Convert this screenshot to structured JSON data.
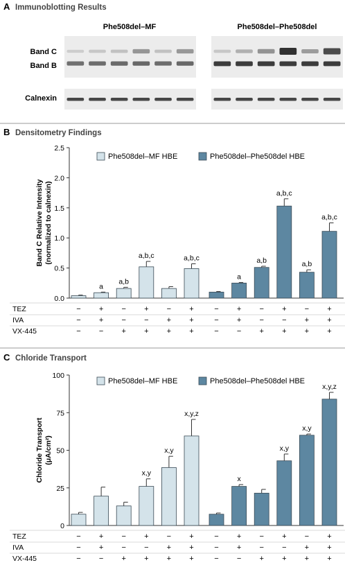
{
  "panels": {
    "A": {
      "letter": "A",
      "title": "Immunoblotting Results",
      "group_labels": [
        "Phe508del–MF",
        "Phe508del–Phe508del"
      ],
      "band_labels": [
        "Band C",
        "Band B",
        "Calnexin"
      ]
    },
    "B": {
      "letter": "B",
      "title": "Densitometry Findings"
    },
    "C": {
      "letter": "C",
      "title": "Chloride Transport"
    }
  },
  "treatment_table": {
    "rows": [
      {
        "label": "TEZ",
        "values": [
          "−",
          "+",
          "−",
          "+",
          "−",
          "+",
          "−",
          "+",
          "−",
          "+",
          "−",
          "+"
        ]
      },
      {
        "label": "IVA",
        "values": [
          "−",
          "+",
          "−",
          "−",
          "+",
          "+",
          "−",
          "+",
          "−",
          "−",
          "+",
          "+"
        ]
      },
      {
        "label": "VX-445",
        "values": [
          "−",
          "−",
          "+",
          "+",
          "+",
          "+",
          "−",
          "−",
          "+",
          "+",
          "+",
          "+"
        ]
      }
    ]
  },
  "colors": {
    "mf": "#d4e3ea",
    "homo": "#5d87a1",
    "bar_edge": "#3a4a55",
    "blot_bg": "#ececec",
    "band": "#2a2a2a"
  },
  "chart_data": [
    {
      "type": "bar",
      "panel": "B",
      "ylabel": "Band C Relative Intensity (normalized to calnexin)",
      "ylabel_lines": [
        "Band C Relative Intensity",
        "(normalized to calnexin)"
      ],
      "ylim": [
        0,
        2.5
      ],
      "yticks": [
        "0.0",
        "0.5",
        "1.0",
        "1.5",
        "2.0",
        "2.5"
      ],
      "grid": false,
      "legend_position": "top",
      "series": [
        {
          "name": "Phe508del–MF HBE",
          "color": "#d4e3ea",
          "values": [
            0.04,
            0.09,
            0.16,
            0.52,
            0.16,
            0.49
          ],
          "errors": [
            0.01,
            0.01,
            0.02,
            0.09,
            0.03,
            0.08
          ],
          "annotations": [
            "",
            "a",
            "a,b",
            "a,b,c",
            "",
            "a,b,c"
          ]
        },
        {
          "name": "Phe508del–Phe508del HBE",
          "color": "#5d87a1",
          "values": [
            0.1,
            0.25,
            0.51,
            1.53,
            0.43,
            1.11
          ],
          "errors": [
            0.01,
            0.01,
            0.02,
            0.12,
            0.04,
            0.14
          ],
          "annotations": [
            "",
            "a",
            "a,b",
            "a,b,c",
            "a,b",
            "a,b,c"
          ]
        }
      ]
    },
    {
      "type": "bar",
      "panel": "C",
      "ylabel": "Chloride Transport (μA/cm²)",
      "ylabel_lines": [
        "Chloride Transport",
        "(μA/cm²)"
      ],
      "ylim": [
        0,
        100
      ],
      "yticks": [
        "0",
        "25",
        "50",
        "75",
        "100"
      ],
      "grid": false,
      "legend_position": "top",
      "series": [
        {
          "name": "Phe508del–MF HBE",
          "color": "#d4e3ea",
          "values": [
            7.5,
            19.5,
            13,
            26,
            38.5,
            59.5
          ],
          "errors": [
            1.2,
            6,
            2.5,
            5,
            7.5,
            11
          ],
          "annotations": [
            "",
            "",
            "",
            "x,y",
            "x,y",
            "x,y,z"
          ]
        },
        {
          "name": "Phe508del–Phe508del HBE",
          "color": "#5d87a1",
          "values": [
            7.5,
            26,
            21.5,
            43,
            60,
            84
          ],
          "errors": [
            0.8,
            1.2,
            2.5,
            4.5,
            0.8,
            4.5
          ],
          "annotations": [
            "",
            "x",
            "",
            "x,y",
            "x,y",
            "x,y,z"
          ]
        }
      ]
    }
  ]
}
